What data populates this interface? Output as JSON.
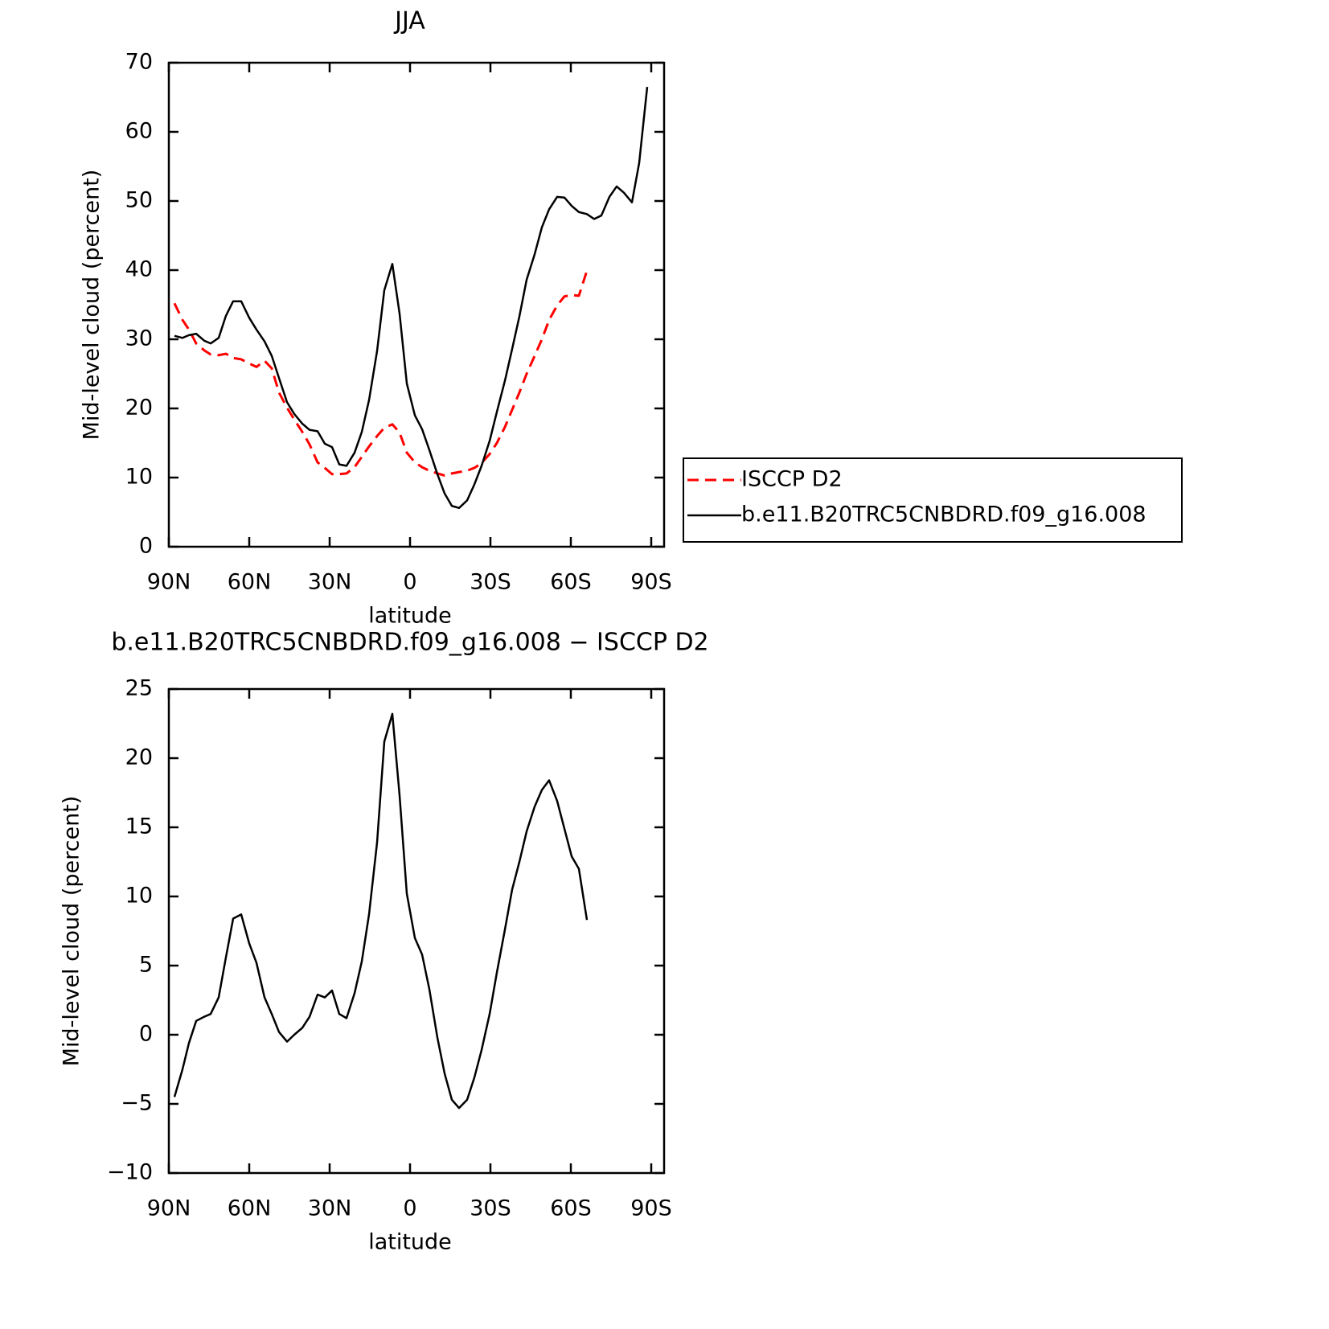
{
  "chart_data": [
    {
      "type": "line",
      "title": "JJA",
      "x_label": "latitude",
      "y_label": "Mid-level cloud (percent)",
      "x": [
        87.9,
        84.9,
        82.5,
        79.8,
        76.8,
        74.4,
        71.4,
        68.7,
        66.0,
        63.0,
        60.0,
        57.3,
        54.3,
        51.6,
        48.9,
        45.9,
        43.2,
        40.2,
        37.5,
        34.5,
        31.8,
        29.1,
        26.4,
        23.7,
        20.7,
        18.0,
        15.3,
        12.3,
        9.6,
        6.6,
        3.9,
        1.2,
        -1.8,
        -4.5,
        -7.2,
        -10.2,
        -12.9,
        -15.6,
        -18.3,
        -21.3,
        -24.0,
        -26.7,
        -29.7,
        -32.4,
        -35.4,
        -38.1,
        -40.8,
        -43.5,
        -46.5,
        -49.2,
        -51.9,
        -54.9,
        -57.6,
        -60.3,
        -63.0,
        -66.0,
        -68.7,
        -71.4,
        -74.4,
        -77.1,
        -79.8,
        -82.8,
        -85.5,
        -88.5
      ],
      "xlim": [
        90,
        -94.8
      ],
      "xticks": [
        {
          "value": 90,
          "label": "90N"
        },
        {
          "value": 60,
          "label": "60N"
        },
        {
          "value": 30,
          "label": "30N"
        },
        0,
        {
          "value": -30,
          "label": "30S"
        },
        {
          "value": -60,
          "label": "60S"
        },
        {
          "value": -90,
          "label": "90S"
        }
      ],
      "ylim": [
        0,
        70
      ],
      "yticks": [
        0,
        10,
        20,
        30,
        40,
        50,
        60,
        70
      ],
      "legend": "right",
      "series": [
        {
          "name": "ISCCP D2",
          "color": "#ff0000",
          "dashed": true,
          "values": [
            35.2,
            32.8,
            31.4,
            29.4,
            28.4,
            27.8,
            27.7,
            27.9,
            27.3,
            27.1,
            26.5,
            26.0,
            26.9,
            25.8,
            22.3,
            20.1,
            18.4,
            16.6,
            14.8,
            12.2,
            11.4,
            10.5,
            10.5,
            10.6,
            11.5,
            13.0,
            14.5,
            16.0,
            17.2,
            17.7,
            16.5,
            13.6,
            12.2,
            11.5,
            11.0,
            10.6,
            10.3,
            10.6,
            10.8,
            11.0,
            11.4,
            12.1,
            13.4,
            15.0,
            17.3,
            19.8,
            22.3,
            25.0,
            27.6,
            30.0,
            32.8,
            34.9,
            36.2,
            36.4,
            36.3,
            39.9,
            null,
            null,
            null,
            null,
            null,
            null,
            null,
            null
          ]
        },
        {
          "name": "b.e11.B20TRC5CNBDRD.f09_g16.008",
          "color": "#000000",
          "dashed": false,
          "values": [
            30.5,
            30.2,
            30.6,
            30.8,
            29.8,
            29.4,
            30.2,
            33.4,
            35.5,
            35.5,
            33.1,
            31.4,
            29.7,
            27.6,
            24.4,
            20.9,
            19.2,
            17.8,
            16.9,
            16.7,
            14.9,
            14.4,
            11.9,
            11.7,
            13.6,
            16.6,
            21.2,
            28.3,
            37.1,
            40.9,
            33.7,
            23.6,
            19.0,
            17.0,
            14.0,
            10.5,
            7.7,
            5.9,
            5.6,
            6.7,
            9.0,
            11.7,
            15.3,
            19.5,
            24.0,
            28.6,
            33.3,
            38.6,
            42.3,
            46.2,
            48.8,
            50.6,
            50.5,
            49.3,
            48.4,
            48.1,
            47.4,
            47.9,
            50.6,
            52.1,
            51.2,
            49.8,
            55.5,
            66.5
          ]
        }
      ]
    },
    {
      "type": "line",
      "title": "b.e11.B20TRC5CNBDRD.f09_g16.008 − ISCCP D2",
      "x_label": "latitude",
      "y_label": "Mid-level cloud (percent)",
      "x": [
        87.9,
        84.9,
        82.5,
        79.8,
        76.8,
        74.4,
        71.4,
        68.7,
        66.0,
        63.0,
        60.0,
        57.3,
        54.3,
        51.6,
        48.9,
        45.9,
        43.2,
        40.2,
        37.5,
        34.5,
        31.8,
        29.1,
        26.4,
        23.7,
        20.7,
        18.0,
        15.3,
        12.3,
        9.6,
        6.6,
        3.9,
        1.2,
        -1.8,
        -4.5,
        -7.2,
        -10.2,
        -12.9,
        -15.6,
        -18.3,
        -21.3,
        -24.0,
        -26.7,
        -29.7,
        -32.4,
        -35.4,
        -38.1,
        -40.8,
        -43.5,
        -46.5,
        -49.2,
        -51.9,
        -54.9,
        -57.6,
        -60.3,
        -63.0,
        -66.0
      ],
      "xlim": [
        90,
        -94.8
      ],
      "xticks": [
        {
          "value": 90,
          "label": "90N"
        },
        {
          "value": 60,
          "label": "60N"
        },
        {
          "value": 30,
          "label": "30N"
        },
        0,
        {
          "value": -30,
          "label": "30S"
        },
        {
          "value": -60,
          "label": "60S"
        },
        {
          "value": -90,
          "label": "90S"
        }
      ],
      "ylim": [
        -10,
        25
      ],
      "yticks": [
        {
          "value": -10,
          "label": "−10"
        },
        {
          "value": -5,
          "label": "−5"
        },
        0,
        5,
        10,
        15,
        20,
        25
      ],
      "series": [
        {
          "color": "#000000",
          "dashed": false,
          "values": [
            -4.5,
            -2.5,
            -0.6,
            1.0,
            1.3,
            1.5,
            2.7,
            5.6,
            8.4,
            8.7,
            6.6,
            5.2,
            2.7,
            1.5,
            0.2,
            -0.5,
            0.0,
            0.5,
            1.3,
            2.9,
            2.7,
            3.2,
            1.5,
            1.2,
            3.0,
            5.3,
            8.7,
            13.9,
            21.2,
            23.2,
            17.3,
            10.2,
            7.0,
            5.8,
            3.3,
            -0.2,
            -2.8,
            -4.7,
            -5.3,
            -4.7,
            -3.1,
            -1.1,
            1.5,
            4.5,
            7.6,
            10.5,
            12.5,
            14.7,
            16.5,
            17.7,
            18.4,
            16.9,
            14.9,
            12.9,
            12.0,
            8.3
          ]
        }
      ]
    }
  ]
}
